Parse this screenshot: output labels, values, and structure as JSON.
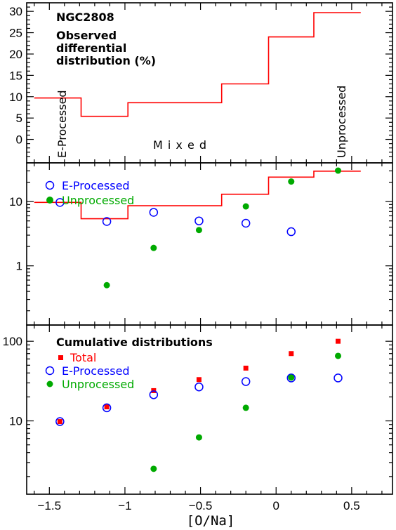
{
  "colors": {
    "total": "#ff0000",
    "eprocessed": "#0000ff",
    "unprocessed": "#00aa00",
    "axes": "#000000"
  },
  "xlabel": "[O/Na]",
  "chart_data": [
    {
      "type": "line",
      "panel": "top",
      "title": "NGC2808",
      "annotation": [
        "Observed",
        "differential",
        "distribution (%)"
      ],
      "xlim": [
        -1.65,
        0.77
      ],
      "ylim": [
        -5.5,
        32
      ],
      "yscale": "linear",
      "yticks": [
        0,
        5,
        10,
        15,
        20,
        25,
        30
      ],
      "ytick_labels": [
        "0",
        "5",
        "10",
        "15",
        "20",
        "25",
        "30"
      ],
      "series": [
        {
          "type": "step",
          "color": "#ff0000",
          "edges": [
            -1.6,
            -1.29,
            -0.98,
            -0.36,
            -0.05,
            0.25,
            0.56
          ],
          "values": [
            9.7,
            5.4,
            8.6,
            13.0,
            24.0,
            29.7
          ]
        }
      ],
      "region_labels": [
        {
          "text": "E-Processed",
          "orientation": "vertical"
        },
        {
          "text": "M i x e d",
          "orientation": "horizontal"
        },
        {
          "text": "Unprocessed",
          "orientation": "vertical"
        }
      ]
    },
    {
      "type": "scatter",
      "panel": "middle",
      "xlim": [
        -1.65,
        0.77
      ],
      "ylim": [
        0.12,
        40
      ],
      "yscale": "log",
      "yticks": [
        1,
        10
      ],
      "ytick_labels": [
        "1",
        "10"
      ],
      "series": [
        {
          "type": "step",
          "color": "#ff0000",
          "edges": [
            -1.6,
            -1.29,
            -0.98,
            -0.36,
            -0.05,
            0.25,
            0.56
          ],
          "values": [
            9.7,
            5.4,
            8.6,
            13.0,
            24.0,
            29.7
          ]
        },
        {
          "name": "E-Processed",
          "marker": "open-circle",
          "color": "#0000ff",
          "x": [
            -1.43,
            -1.12,
            -0.81,
            -0.51,
            -0.2,
            0.1
          ],
          "y": [
            9.7,
            4.9,
            6.8,
            5.0,
            4.6,
            3.4
          ]
        },
        {
          "name": "Unprocessed",
          "marker": "filled-circle",
          "color": "#00aa00",
          "x": [
            -1.12,
            -0.81,
            -0.51,
            -0.2,
            0.1,
            0.41
          ],
          "y": [
            0.5,
            1.9,
            3.6,
            8.4,
            20.5,
            30.3
          ]
        }
      ]
    },
    {
      "type": "scatter",
      "panel": "bottom",
      "title": "Cumulative distributions",
      "xlim": [
        -1.65,
        0.77
      ],
      "ylim": [
        1.2,
        160
      ],
      "yscale": "log",
      "yticks": [
        10,
        100
      ],
      "ytick_labels": [
        "10",
        "100"
      ],
      "xticks": [
        -1.5,
        -1,
        -0.5,
        0,
        0.5
      ],
      "xtick_labels": [
        "−1.5",
        "−1",
        "−0.5",
        "0",
        "0.5"
      ],
      "series": [
        {
          "name": "Total",
          "marker": "filled-square",
          "color": "#ff0000",
          "x": [
            -1.43,
            -1.12,
            -0.81,
            -0.51,
            -0.2,
            0.1,
            0.41
          ],
          "y": [
            9.8,
            15.0,
            24.0,
            33.0,
            46.0,
            70.0,
            100.0
          ]
        },
        {
          "name": "E-Processed",
          "marker": "open-circle",
          "color": "#0000ff",
          "x": [
            -1.43,
            -1.12,
            -0.81,
            -0.51,
            -0.2,
            0.1,
            0.41
          ],
          "y": [
            9.8,
            14.6,
            21.3,
            26.7,
            31.2,
            34.6,
            34.6
          ]
        },
        {
          "name": "Unprocessed",
          "marker": "filled-circle",
          "color": "#00aa00",
          "x": [
            -0.81,
            -0.51,
            -0.2,
            0.1,
            0.41
          ],
          "y": [
            2.5,
            6.2,
            14.6,
            35.0,
            65.5
          ]
        }
      ]
    }
  ]
}
